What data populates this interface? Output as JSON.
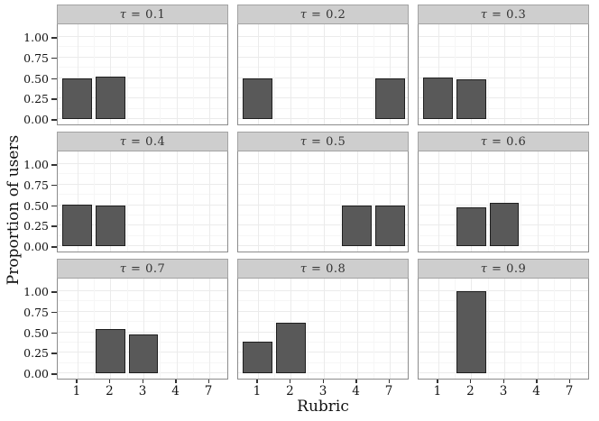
{
  "colors": {
    "bar_fill": "#595959",
    "bar_border": "#1F1F1F",
    "strip_background": "#CECECE",
    "strip_border": "#A3A3A3",
    "panel_border": "#8C8C8C",
    "grid_major": "#EBEBEB",
    "grid_minor": "#F6F6F6",
    "text": "#111111"
  },
  "chart_data": {
    "type": "bar",
    "faceted": true,
    "facet_variable": "tau",
    "title": "",
    "xlabel": "Rubric",
    "ylabel": "Proportion of users",
    "categories": [
      "1",
      "2",
      "3",
      "4",
      "7"
    ],
    "y_ticks": [
      "0.00",
      "0.25",
      "0.50",
      "0.75",
      "1.00"
    ],
    "ylim": [
      0,
      1
    ],
    "grid": "major-and-minor",
    "legend": "none",
    "facets": [
      {
        "label": "τ = 0.1",
        "bars": [
          {
            "category": "1",
            "value": 0.5
          },
          {
            "category": "2",
            "value": 0.515
          }
        ]
      },
      {
        "label": "τ = 0.2",
        "bars": [
          {
            "category": "1",
            "value": 0.5
          },
          {
            "category": "7",
            "value": 0.5
          }
        ]
      },
      {
        "label": "τ = 0.3",
        "bars": [
          {
            "category": "1",
            "value": 0.51
          },
          {
            "category": "2",
            "value": 0.48
          }
        ]
      },
      {
        "label": "τ = 0.4",
        "bars": [
          {
            "category": "1",
            "value": 0.51
          },
          {
            "category": "2",
            "value": 0.5
          }
        ]
      },
      {
        "label": "τ = 0.5",
        "bars": [
          {
            "category": "4",
            "value": 0.5
          },
          {
            "category": "7",
            "value": 0.5
          }
        ]
      },
      {
        "label": "τ = 0.6",
        "bars": [
          {
            "category": "2",
            "value": 0.47
          },
          {
            "category": "3",
            "value": 0.53
          }
        ]
      },
      {
        "label": "τ = 0.7",
        "bars": [
          {
            "category": "2",
            "value": 0.54
          },
          {
            "category": "3",
            "value": 0.47
          }
        ]
      },
      {
        "label": "τ = 0.8",
        "bars": [
          {
            "category": "1",
            "value": 0.39
          },
          {
            "category": "2",
            "value": 0.62
          }
        ]
      },
      {
        "label": "τ = 0.9",
        "bars": [
          {
            "category": "2",
            "value": 1.0
          }
        ]
      }
    ]
  }
}
